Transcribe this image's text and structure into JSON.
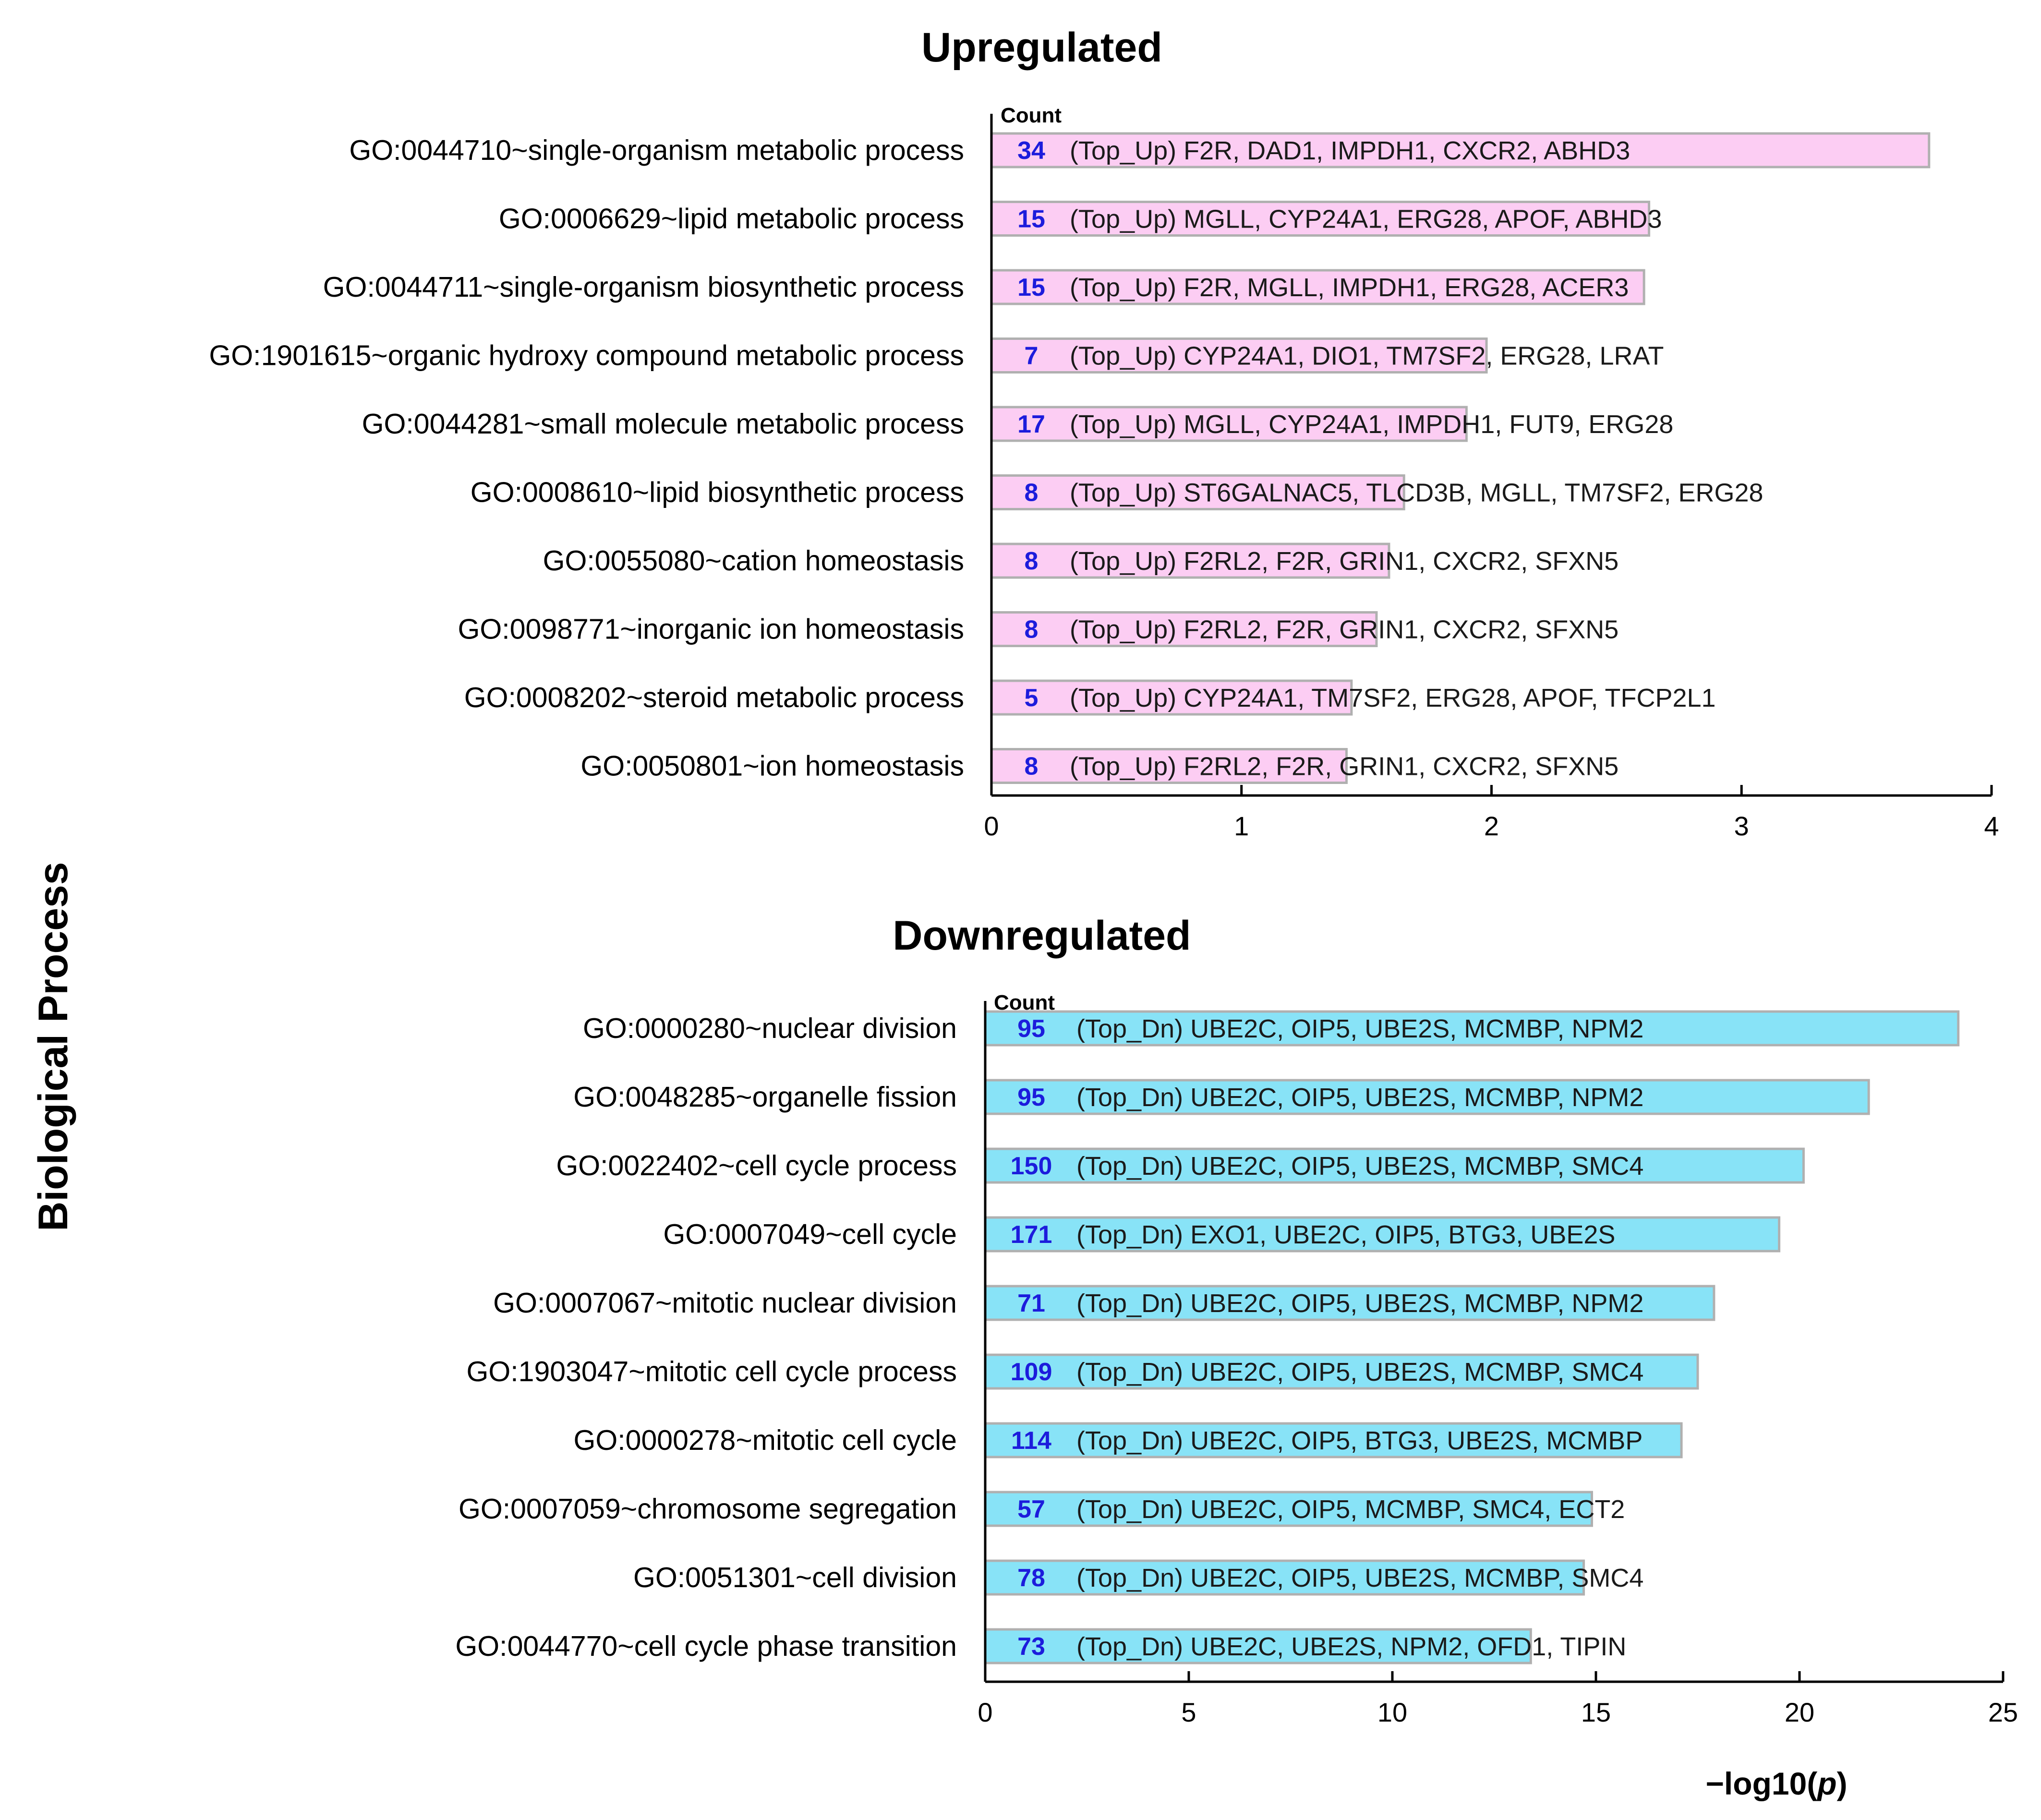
{
  "figure": {
    "y_axis_label": "Biological Process",
    "x_axis_label_prefix": "−log10(",
    "x_axis_label_italic": "p",
    "x_axis_label_suffix": ")",
    "count_header": "Count"
  },
  "colors": {
    "up_bar": "#fccdf3",
    "down_bar": "#88e3f7",
    "bar_border": "#b0b0b0",
    "count_text": "#1c1cdc"
  },
  "chart_data": [
    {
      "type": "bar",
      "orientation": "horizontal",
      "title": "Upregulated",
      "xlabel": "−log10(p)",
      "xlim": [
        0,
        4
      ],
      "xticks": [
        0,
        1,
        2,
        3,
        4
      ],
      "categories": [
        "GO:0044710~single-organism metabolic process",
        "GO:0006629~lipid metabolic process",
        "GO:0044711~single-organism biosynthetic process",
        "GO:1901615~organic hydroxy compound metabolic process",
        "GO:0044281~small molecule metabolic process",
        "GO:0008610~lipid biosynthetic process",
        "GO:0055080~cation homeostasis",
        "GO:0098771~inorganic ion homeostasis",
        "GO:0008202~steroid metabolic process",
        "GO:0050801~ion homeostasis"
      ],
      "values": [
        3.75,
        2.63,
        2.61,
        1.98,
        1.9,
        1.65,
        1.59,
        1.54,
        1.44,
        1.42
      ],
      "counts": [
        "34",
        "15",
        "15",
        "7",
        "17",
        "8",
        "8",
        "8",
        "5",
        "8"
      ],
      "genes": [
        "(Top_Up) F2R, DAD1, IMPDH1, CXCR2, ABHD3",
        "(Top_Up) MGLL, CYP24A1, ERG28, APOF, ABHD3",
        "(Top_Up) F2R, MGLL, IMPDH1, ERG28, ACER3",
        "(Top_Up) CYP24A1, DIO1, TM7SF2, ERG28, LRAT",
        "(Top_Up) MGLL, CYP24A1, IMPDH1, FUT9, ERG28",
        "(Top_Up) ST6GALNAC5, TLCD3B, MGLL, TM7SF2, ERG28",
        "(Top_Up) F2RL2, F2R, GRIN1, CXCR2, SFXN5",
        "(Top_Up) F2RL2, F2R, GRIN1, CXCR2, SFXN5",
        "(Top_Up) CYP24A1, TM7SF2, ERG28, APOF, TFCP2L1",
        "(Top_Up) F2RL2, F2R, GRIN1, CXCR2, SFXN5"
      ]
    },
    {
      "type": "bar",
      "orientation": "horizontal",
      "title": "Downregulated",
      "xlabel": "−log10(p)",
      "xlim": [
        0,
        25
      ],
      "xticks": [
        0,
        5,
        10,
        15,
        20,
        25
      ],
      "categories": [
        "GO:0000280~nuclear division",
        "GO:0048285~organelle fission",
        "GO:0022402~cell cycle process",
        "GO:0007049~cell cycle",
        "GO:0007067~mitotic nuclear division",
        "GO:1903047~mitotic cell cycle process",
        "GO:0000278~mitotic cell cycle",
        "GO:0007059~chromosome segregation",
        "GO:0051301~cell division",
        "GO:0044770~cell cycle phase transition"
      ],
      "values": [
        23.9,
        21.7,
        20.1,
        19.5,
        17.9,
        17.5,
        17.1,
        14.9,
        14.7,
        13.4
      ],
      "counts": [
        "95",
        "95",
        "150",
        "171",
        "71",
        "109",
        "114",
        "57",
        "78",
        "73"
      ],
      "genes": [
        "(Top_Dn) UBE2C, OIP5, UBE2S, MCMBP, NPM2",
        "(Top_Dn) UBE2C, OIP5, UBE2S, MCMBP, NPM2",
        "(Top_Dn) UBE2C, OIP5, UBE2S, MCMBP, SMC4",
        "(Top_Dn) EXO1, UBE2C, OIP5, BTG3, UBE2S",
        "(Top_Dn) UBE2C, OIP5, UBE2S, MCMBP, NPM2",
        "(Top_Dn) UBE2C, OIP5, UBE2S, MCMBP, SMC4",
        "(Top_Dn) UBE2C, OIP5, BTG3, UBE2S, MCMBP",
        "(Top_Dn) UBE2C, OIP5, MCMBP, SMC4, ECT2",
        "(Top_Dn) UBE2C, OIP5, UBE2S, MCMBP, SMC4",
        "(Top_Dn) UBE2C, UBE2S, NPM2, OFD1, TIPIN"
      ]
    }
  ]
}
